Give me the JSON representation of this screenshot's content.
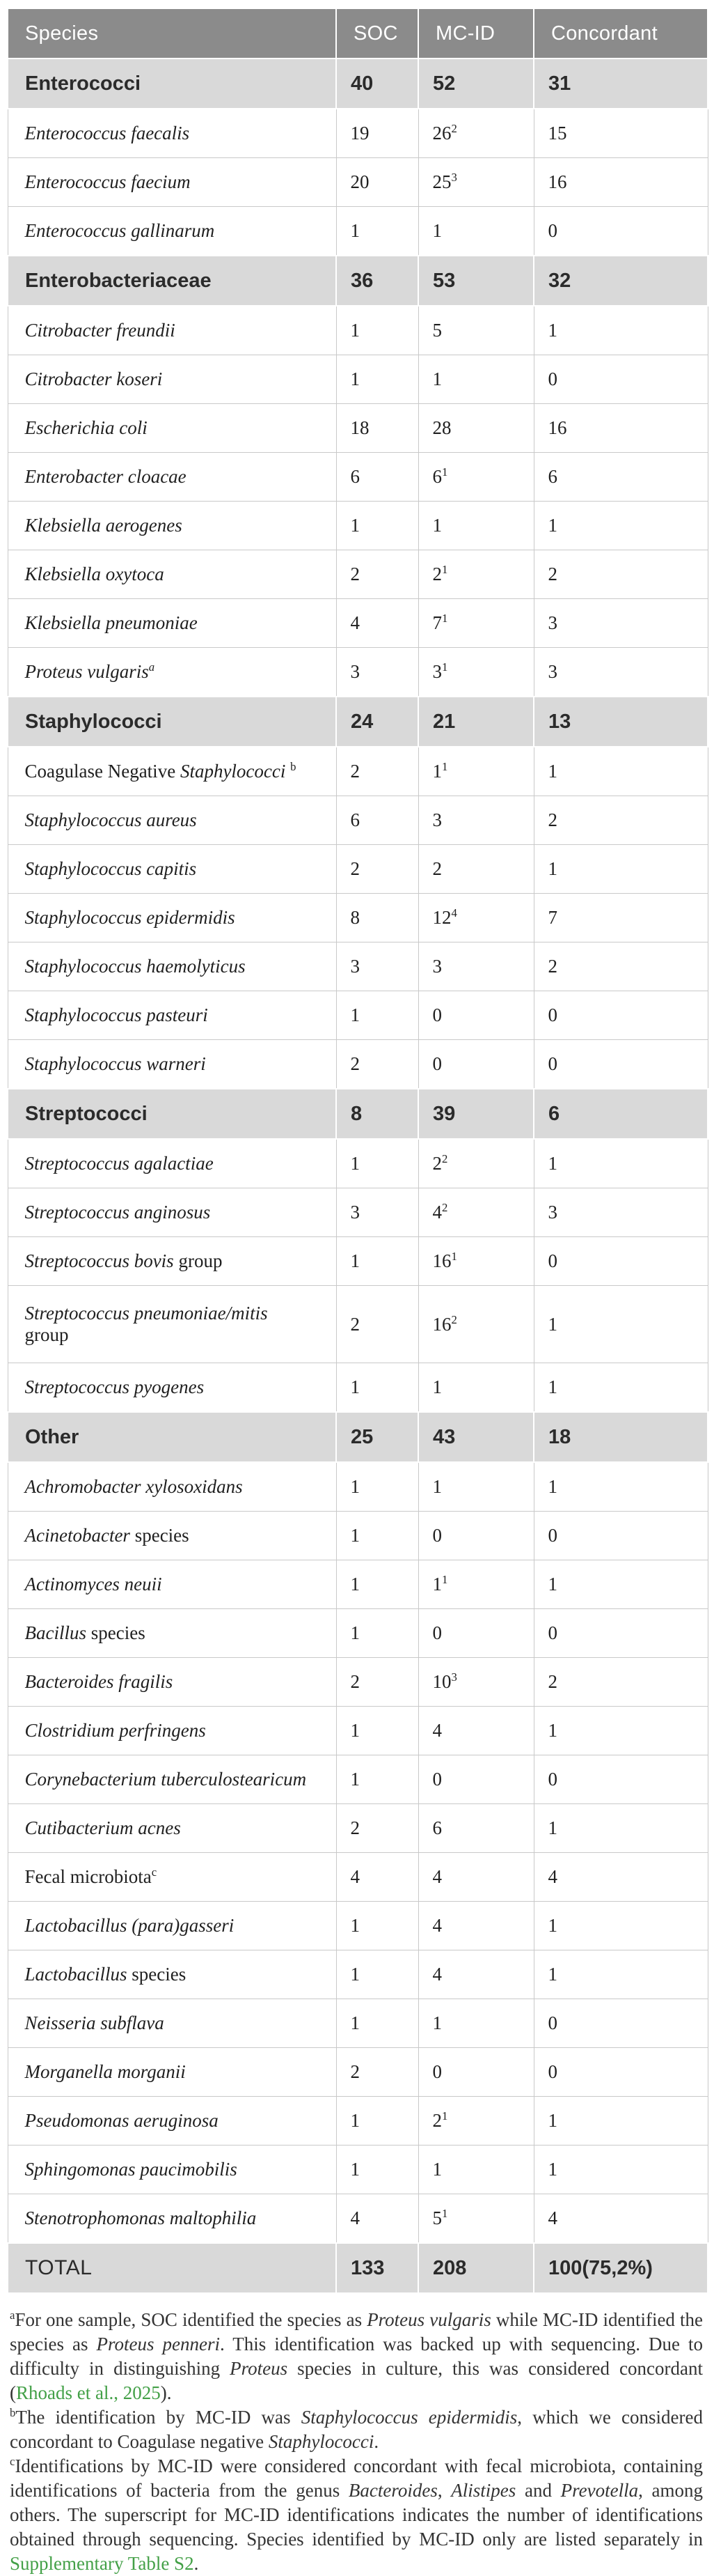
{
  "colors": {
    "header_bg": "#8b8b8b",
    "header_text": "#ffffff",
    "group_row_bg": "#d9d9d9",
    "body_text": "#1f1f1f",
    "grid_line": "#c9c9c9",
    "link_green": "#43a047"
  },
  "table": {
    "columns": [
      {
        "label": "Species"
      },
      {
        "label": "SOC"
      },
      {
        "label": "MC-ID"
      },
      {
        "label": "Concordant"
      }
    ],
    "rows": [
      {
        "type": "group",
        "name": [
          {
            "t": "Enterococci",
            "s": "r"
          }
        ],
        "soc": "40",
        "mcid": "52",
        "concordant": "31"
      },
      {
        "type": "species",
        "name": [
          {
            "t": "Enterococcus faecalis",
            "s": "i"
          }
        ],
        "soc": "19",
        "mcid": {
          "v": "26",
          "sup": "2"
        },
        "concordant": "15"
      },
      {
        "type": "species",
        "name": [
          {
            "t": "Enterococcus faecium",
            "s": "i"
          }
        ],
        "soc": "20",
        "mcid": {
          "v": "25",
          "sup": "3"
        },
        "concordant": "16"
      },
      {
        "type": "species",
        "name": [
          {
            "t": "Enterococcus gallinarum",
            "s": "i"
          }
        ],
        "soc": "1",
        "mcid": "1",
        "concordant": "0"
      },
      {
        "type": "group",
        "name": [
          {
            "t": "Enterobacteriaceae",
            "s": "r"
          }
        ],
        "soc": "36",
        "mcid": "53",
        "concordant": "32"
      },
      {
        "type": "species",
        "name": [
          {
            "t": "Citrobacter freundii",
            "s": "i"
          }
        ],
        "soc": "1",
        "mcid": "5",
        "concordant": "1"
      },
      {
        "type": "species",
        "name": [
          {
            "t": "Citrobacter koseri",
            "s": "i"
          }
        ],
        "soc": "1",
        "mcid": "1",
        "concordant": "0"
      },
      {
        "type": "species",
        "name": [
          {
            "t": "Escherichia coli",
            "s": "i"
          }
        ],
        "soc": "18",
        "mcid": "28",
        "concordant": "16"
      },
      {
        "type": "species",
        "name": [
          {
            "t": "Enterobacter cloacae",
            "s": "i"
          }
        ],
        "soc": "6",
        "mcid": {
          "v": "6",
          "sup": "1"
        },
        "concordant": "6"
      },
      {
        "type": "species",
        "name": [
          {
            "t": "Klebsiella aerogenes",
            "s": "i"
          }
        ],
        "soc": "1",
        "mcid": "1",
        "concordant": "1"
      },
      {
        "type": "species",
        "name": [
          {
            "t": "Klebsiella oxytoca",
            "s": "i"
          }
        ],
        "soc": "2",
        "mcid": {
          "v": "2",
          "sup": "1"
        },
        "concordant": "2"
      },
      {
        "type": "species",
        "name": [
          {
            "t": "Klebsiella pneumoniae",
            "s": "i"
          }
        ],
        "soc": "4",
        "mcid": {
          "v": "7",
          "sup": "1"
        },
        "concordant": "3"
      },
      {
        "type": "species",
        "name": [
          {
            "t": "Proteus vulgaris",
            "s": "i"
          },
          {
            "t": "a",
            "s": "isup"
          }
        ],
        "soc": "3",
        "mcid": {
          "v": "3",
          "sup": "1"
        },
        "concordant": "3"
      },
      {
        "type": "group",
        "name": [
          {
            "t": "Staphylococci",
            "s": "r"
          }
        ],
        "soc": "24",
        "mcid": "21",
        "concordant": "13"
      },
      {
        "type": "species",
        "name": [
          {
            "t": "Coagulase Negative ",
            "s": "r"
          },
          {
            "t": "Staphylococci",
            "s": "i"
          },
          {
            "t": " ",
            "s": "r"
          },
          {
            "t": "b",
            "s": "sup"
          }
        ],
        "soc": "2",
        "mcid": {
          "v": "1",
          "sup": "1"
        },
        "concordant": "1"
      },
      {
        "type": "species",
        "name": [
          {
            "t": "Staphylococcus aureus",
            "s": "i"
          }
        ],
        "soc": "6",
        "mcid": "3",
        "concordant": "2"
      },
      {
        "type": "species",
        "name": [
          {
            "t": "Staphylococcus capitis",
            "s": "i"
          }
        ],
        "soc": "2",
        "mcid": "2",
        "concordant": "1"
      },
      {
        "type": "species",
        "name": [
          {
            "t": "Staphylococcus epidermidis",
            "s": "i"
          }
        ],
        "soc": "8",
        "mcid": {
          "v": "12",
          "sup": "4"
        },
        "concordant": "7"
      },
      {
        "type": "species",
        "name": [
          {
            "t": "Staphylococcus haemolyticus",
            "s": "i"
          }
        ],
        "soc": "3",
        "mcid": "3",
        "concordant": "2"
      },
      {
        "type": "species",
        "name": [
          {
            "t": "Staphylococcus pasteuri",
            "s": "i"
          }
        ],
        "soc": "1",
        "mcid": "0",
        "concordant": "0"
      },
      {
        "type": "species",
        "name": [
          {
            "t": "Staphylococcus warneri",
            "s": "i"
          }
        ],
        "soc": "2",
        "mcid": "0",
        "concordant": "0"
      },
      {
        "type": "group",
        "name": [
          {
            "t": "Streptococci",
            "s": "r"
          }
        ],
        "soc": "8",
        "mcid": "39",
        "concordant": "6"
      },
      {
        "type": "species",
        "name": [
          {
            "t": "Streptococcus agalactiae",
            "s": "i"
          }
        ],
        "soc": "1",
        "mcid": {
          "v": "2",
          "sup": "2"
        },
        "concordant": "1"
      },
      {
        "type": "species",
        "name": [
          {
            "t": "Streptococcus anginosus",
            "s": "i"
          }
        ],
        "soc": "3",
        "mcid": {
          "v": "4",
          "sup": "2"
        },
        "concordant": "3"
      },
      {
        "type": "species",
        "name": [
          {
            "t": "Streptococcus bovis",
            "s": "i"
          },
          {
            "t": " group",
            "s": "r"
          }
        ],
        "soc": "1",
        "mcid": {
          "v": "16",
          "sup": "1"
        },
        "concordant": "0"
      },
      {
        "type": "species",
        "tall": true,
        "name": [
          {
            "t": "Streptococcus pneumoniae/mitis",
            "s": "i"
          },
          {
            "br": true
          },
          {
            "t": "group",
            "s": "r"
          }
        ],
        "soc": "2",
        "mcid": {
          "v": "16",
          "sup": "2"
        },
        "concordant": "1"
      },
      {
        "type": "species",
        "name": [
          {
            "t": "Streptococcus pyogenes",
            "s": "i"
          }
        ],
        "soc": "1",
        "mcid": "1",
        "concordant": "1"
      },
      {
        "type": "group",
        "name": [
          {
            "t": "Other",
            "s": "r"
          }
        ],
        "soc": "25",
        "mcid": "43",
        "concordant": "18"
      },
      {
        "type": "species",
        "name": [
          {
            "t": "Achromobacter xylosoxidans",
            "s": "i"
          }
        ],
        "soc": "1",
        "mcid": "1",
        "concordant": "1"
      },
      {
        "type": "species",
        "name": [
          {
            "t": "Acinetobacter",
            "s": "i"
          },
          {
            "t": " species",
            "s": "r"
          }
        ],
        "soc": "1",
        "mcid": "0",
        "concordant": "0"
      },
      {
        "type": "species",
        "name": [
          {
            "t": "Actinomyces neuii",
            "s": "i"
          }
        ],
        "soc": "1",
        "mcid": {
          "v": "1",
          "sup": "1"
        },
        "concordant": "1"
      },
      {
        "type": "species",
        "name": [
          {
            "t": "Bacillus",
            "s": "i"
          },
          {
            "t": " species",
            "s": "r"
          }
        ],
        "soc": "1",
        "mcid": "0",
        "concordant": "0"
      },
      {
        "type": "species",
        "name": [
          {
            "t": "Bacteroides fragilis",
            "s": "i"
          }
        ],
        "soc": "2",
        "mcid": {
          "v": "10",
          "sup": "3"
        },
        "concordant": "2"
      },
      {
        "type": "species",
        "name": [
          {
            "t": "Clostridium perfringens",
            "s": "i"
          }
        ],
        "soc": "1",
        "mcid": "4",
        "concordant": "1"
      },
      {
        "type": "species",
        "name": [
          {
            "t": "Corynebacterium tuberculostearicum",
            "s": "i"
          }
        ],
        "soc": "1",
        "mcid": "0",
        "concordant": "0"
      },
      {
        "type": "species",
        "name": [
          {
            "t": "Cutibacterium acnes",
            "s": "i"
          }
        ],
        "soc": "2",
        "mcid": "6",
        "concordant": "1"
      },
      {
        "type": "species",
        "name": [
          {
            "t": "Fecal microbiota",
            "s": "r"
          },
          {
            "t": "c",
            "s": "sup"
          }
        ],
        "soc": "4",
        "mcid": "4",
        "concordant": "4"
      },
      {
        "type": "species",
        "name": [
          {
            "t": "Lactobacillus (para)gasseri",
            "s": "i"
          }
        ],
        "soc": "1",
        "mcid": "4",
        "concordant": "1"
      },
      {
        "type": "species",
        "name": [
          {
            "t": "Lactobacillus",
            "s": "i"
          },
          {
            "t": " species",
            "s": "r"
          }
        ],
        "soc": "1",
        "mcid": "4",
        "concordant": "1"
      },
      {
        "type": "species",
        "name": [
          {
            "t": "Neisseria subflava",
            "s": "i"
          }
        ],
        "soc": "1",
        "mcid": "1",
        "concordant": "0"
      },
      {
        "type": "species",
        "name": [
          {
            "t": "Morganella morganii",
            "s": "i"
          }
        ],
        "soc": "2",
        "mcid": "0",
        "concordant": "0"
      },
      {
        "type": "species",
        "name": [
          {
            "t": "Pseudomonas aeruginosa",
            "s": "i"
          }
        ],
        "soc": "1",
        "mcid": {
          "v": "2",
          "sup": "1"
        },
        "concordant": "1"
      },
      {
        "type": "species",
        "name": [
          {
            "t": "Sphingomonas paucimobilis",
            "s": "i"
          }
        ],
        "soc": "1",
        "mcid": "1",
        "concordant": "1"
      },
      {
        "type": "species",
        "name": [
          {
            "t": "Stenotrophomonas maltophilia",
            "s": "i"
          }
        ],
        "soc": "4",
        "mcid": {
          "v": "5",
          "sup": "1"
        },
        "concordant": "4"
      },
      {
        "type": "total",
        "name": [
          {
            "t": "TOTAL",
            "s": "r"
          }
        ],
        "soc": "133",
        "mcid": "208",
        "concordant": "100(75,2%)"
      }
    ]
  },
  "footnotes": [
    {
      "id": "footnote-a",
      "segments": [
        {
          "t": "a",
          "s": "sup"
        },
        {
          "t": "For one sample, SOC identified the species as ",
          "s": "r"
        },
        {
          "t": "Proteus vulgaris",
          "s": "i"
        },
        {
          "t": " while MC-ID identified the species as ",
          "s": "r"
        },
        {
          "t": "Proteus penneri",
          "s": "i"
        },
        {
          "t": ". This identification was backed up with sequencing. Due to difficulty in distinguishing ",
          "s": "r"
        },
        {
          "t": "Proteus",
          "s": "i"
        },
        {
          "t": " species in culture, this was considered concordant (",
          "s": "r"
        },
        {
          "t": "Rhoads et al., 2025",
          "s": "link",
          "n": "citation-link-rhoads-2025"
        },
        {
          "t": ").",
          "s": "r"
        }
      ]
    },
    {
      "id": "footnote-b",
      "segments": [
        {
          "t": "b",
          "s": "sup"
        },
        {
          "t": "The identification by MC-ID was ",
          "s": "r"
        },
        {
          "t": "Staphylococcus epidermidis",
          "s": "i"
        },
        {
          "t": ", which we considered concordant to Coagulase negative ",
          "s": "r"
        },
        {
          "t": "Staphylococci",
          "s": "i"
        },
        {
          "t": ".",
          "s": "r"
        }
      ]
    },
    {
      "id": "footnote-c",
      "segments": [
        {
          "t": "c",
          "s": "sup"
        },
        {
          "t": "Identifications by MC-ID were considered concordant with fecal microbiota, containing identifications of bacteria from the genus ",
          "s": "r"
        },
        {
          "t": "Bacteroides",
          "s": "i"
        },
        {
          "t": ", ",
          "s": "r"
        },
        {
          "t": "Alistipes",
          "s": "i"
        },
        {
          "t": " and ",
          "s": "r"
        },
        {
          "t": "Prevotella",
          "s": "i"
        },
        {
          "t": ", among others. The superscript for MC-ID identifications indicates the number of identifications obtained through sequencing. Species identified by MC-ID only are listed separately in ",
          "s": "r"
        },
        {
          "t": "Supplementary Table S2",
          "s": "link",
          "n": "supplementary-table-s2-link"
        },
        {
          "t": ".",
          "s": "r"
        }
      ]
    }
  ]
}
